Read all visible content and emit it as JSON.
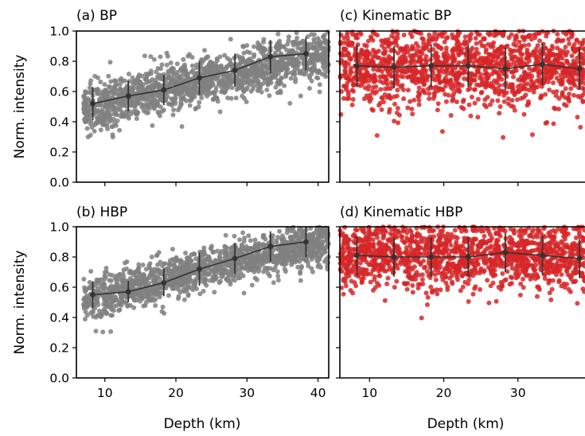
{
  "figure": {
    "ylabel_left": "Norm. intensity",
    "xlabel": "Depth (km)",
    "xlim": [
      6,
      41.5
    ],
    "ylim": [
      0.0,
      1.0
    ],
    "xticks": [
      "10",
      "20",
      "30",
      "40"
    ],
    "yticks": [
      "0.0",
      "0.2",
      "0.4",
      "0.6",
      "0.8",
      "1.0"
    ]
  },
  "colors": {
    "gray_points": "#808080",
    "red_points": "#d62728",
    "mean_line": "#333333"
  },
  "chart_data": [
    {
      "type": "scatter",
      "title": "(a) BP",
      "point_color": "gray",
      "x_range": [
        7,
        41.5
      ],
      "trend": {
        "start": 0.49,
        "end": 0.86,
        "spread": 0.08,
        "min": 0.23
      },
      "binned_means": {
        "x": [
          8.3,
          13.3,
          18.3,
          23.3,
          28.3,
          33.3,
          38.3
        ],
        "y": [
          0.52,
          0.57,
          0.61,
          0.69,
          0.74,
          0.83,
          0.85
        ],
        "err": [
          0.11,
          0.1,
          0.1,
          0.11,
          0.11,
          0.11,
          0.11
        ]
      }
    },
    {
      "type": "scatter",
      "title": "(b) HBP",
      "point_color": "gray",
      "x_range": [
        7,
        41.5
      ],
      "trend": {
        "start": 0.52,
        "end": 0.91,
        "spread": 0.07,
        "min": 0.22
      },
      "binned_means": {
        "x": [
          8.3,
          13.3,
          18.3,
          23.3,
          28.3,
          33.3,
          38.3
        ],
        "y": [
          0.55,
          0.57,
          0.63,
          0.72,
          0.79,
          0.87,
          0.9
        ],
        "err": [
          0.09,
          0.07,
          0.09,
          0.11,
          0.1,
          0.1,
          0.1
        ]
      }
    },
    {
      "type": "scatter",
      "title": "(c) Kinematic BP",
      "point_color": "red",
      "x_range": [
        6,
        41.5
      ],
      "trend": {
        "start": 0.77,
        "end": 0.76,
        "spread": 0.13,
        "min": 0.29
      },
      "binned_means": {
        "x": [
          8.3,
          13.3,
          18.3,
          23.3,
          28.3,
          33.3,
          38.3
        ],
        "y": [
          0.77,
          0.76,
          0.77,
          0.77,
          0.75,
          0.78,
          0.75
        ],
        "err": [
          0.14,
          0.14,
          0.14,
          0.14,
          0.14,
          0.14,
          0.14
        ]
      }
    },
    {
      "type": "scatter",
      "title": "(d) Kinematic HBP",
      "point_color": "red",
      "x_range": [
        6,
        41.5
      ],
      "trend": {
        "start": 0.81,
        "end": 0.8,
        "spread": 0.11,
        "min": 0.26
      },
      "binned_means": {
        "x": [
          8.3,
          13.3,
          18.3,
          23.3,
          28.3,
          33.3,
          38.3
        ],
        "y": [
          0.81,
          0.8,
          0.8,
          0.8,
          0.83,
          0.81,
          0.79
        ],
        "err": [
          0.13,
          0.13,
          0.13,
          0.13,
          0.13,
          0.13,
          0.13
        ]
      }
    }
  ]
}
